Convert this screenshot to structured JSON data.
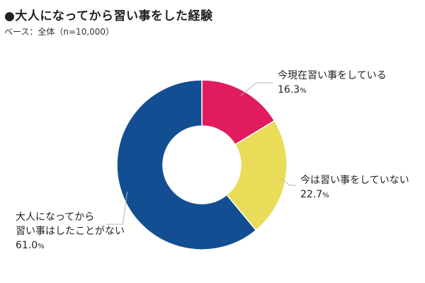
{
  "header": {
    "title": "●大人になってから習い事をした経験",
    "subtitle": "ベース：全体（n=10,000）"
  },
  "chart_data": {
    "type": "pie",
    "donut": true,
    "unit": "%",
    "categories": [
      "今現在習い事をしている",
      "今は習い事をしていない",
      "大人になってから習い事はしたことがない"
    ],
    "values": [
      16.3,
      22.7,
      61.0
    ],
    "labels_display": [
      {
        "lines": [
          "今現在習い事をしている"
        ],
        "value": "16.3",
        "unit": "%"
      },
      {
        "lines": [
          "今は習い事をしていない"
        ],
        "value": "22.7",
        "unit": "%"
      },
      {
        "lines": [
          "大人になってから",
          "習い事はしたことがない"
        ],
        "value": "61.0",
        "unit": "%"
      }
    ],
    "colors": [
      "#e01b5e",
      "#e8dc58",
      "#124e91"
    ],
    "start": "top",
    "direction": "clockwise"
  }
}
